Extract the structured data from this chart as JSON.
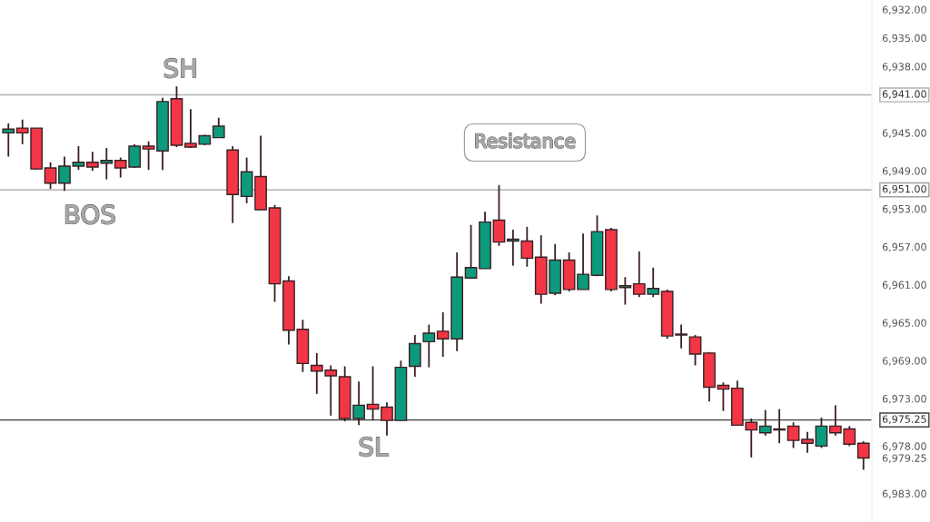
{
  "chart_data": {
    "type": "candlestick",
    "categories": [
      null,
      null,
      null,
      null,
      null,
      null,
      null,
      null,
      null,
      null,
      null,
      null,
      null,
      null,
      null,
      null,
      null,
      null,
      null,
      null,
      null,
      null,
      null,
      null,
      null,
      null,
      null,
      null,
      null,
      null,
      null,
      null,
      null,
      null,
      null,
      null,
      null,
      null,
      null,
      null,
      null,
      null,
      null,
      null,
      null,
      null,
      null,
      null,
      null,
      null,
      null,
      null,
      null,
      null,
      null,
      null,
      null,
      null,
      null,
      null,
      null,
      null
    ],
    "ohlc": [
      [
        6945.0,
        6947.5,
        6944.0,
        6944.6
      ],
      [
        6944.5,
        6946.2,
        6943.6,
        6945.0
      ],
      [
        6944.5,
        6948.9,
        6944.5,
        6948.8
      ],
      [
        6948.7,
        6950.9,
        6948.1,
        6950.3
      ],
      [
        6950.3,
        6951.1,
        6947.5,
        6948.5
      ],
      [
        6948.5,
        6948.9,
        6946.4,
        6948.1
      ],
      [
        6948.1,
        6949.0,
        6947.0,
        6948.6
      ],
      [
        6948.2,
        6949.9,
        6946.6,
        6947.9
      ],
      [
        6947.9,
        6949.7,
        6947.6,
        6948.7
      ],
      [
        6948.6,
        6948.7,
        6946.2,
        6946.4
      ],
      [
        6946.4,
        6948.9,
        6945.9,
        6946.7
      ],
      [
        6946.9,
        6948.9,
        6941.3,
        6941.7
      ],
      [
        6941.4,
        6946.5,
        6940.1,
        6946.3
      ],
      [
        6946.1,
        6946.6,
        6942.5,
        6946.5
      ],
      [
        6946.2,
        6946.3,
        6945.2,
        6945.3
      ],
      [
        6945.5,
        6945.5,
        6943.4,
        6944.3
      ],
      [
        6946.8,
        6954.5,
        6946.4,
        6951.5
      ],
      [
        6951.7,
        6952.4,
        6947.6,
        6949.1
      ],
      [
        6949.6,
        6953.1,
        6945.3,
        6953.1
      ],
      [
        6952.9,
        6962.8,
        6952.6,
        6960.9
      ],
      [
        6960.6,
        6967.3,
        6960.1,
        6965.8
      ],
      [
        6965.7,
        6970.2,
        6964.7,
        6969.3
      ],
      [
        6969.5,
        6972.5,
        6968.2,
        6970.1
      ],
      [
        6970.0,
        6974.8,
        6969.5,
        6970.6
      ],
      [
        6970.7,
        6975.4,
        6969.6,
        6975.1
      ],
      [
        6975.1,
        6975.8,
        6971.2,
        6973.7
      ],
      [
        6973.6,
        6975.3,
        6969.6,
        6974.1
      ],
      [
        6973.9,
        6976.9,
        6973.4,
        6975.3
      ],
      [
        6975.3,
        6975.3,
        6969.0,
        6969.7
      ],
      [
        6969.6,
        6970.7,
        6966.3,
        6967.2
      ],
      [
        6967.0,
        6969.7,
        6965.2,
        6966.1
      ],
      [
        6965.9,
        6968.6,
        6963.9,
        6966.7
      ],
      [
        6966.7,
        6968.0,
        6957.6,
        6960.2
      ],
      [
        6960.3,
        6960.3,
        6954.7,
        6959.2
      ],
      [
        6959.3,
        6959.3,
        6953.3,
        6954.4
      ],
      [
        6954.2,
        6956.9,
        6950.5,
        6956.5
      ],
      [
        6956.4,
        6959.0,
        6955.2,
        6956.2
      ],
      [
        6956.4,
        6959.1,
        6954.9,
        6958.2
      ],
      [
        6958.1,
        6963.0,
        6955.8,
        6962.0
      ],
      [
        6961.9,
        6962.1,
        6956.7,
        6958.4
      ],
      [
        6958.4,
        6961.7,
        6957.6,
        6961.5
      ],
      [
        6961.5,
        6961.5,
        6955.6,
        6959.9
      ],
      [
        6960.0,
        6960.1,
        6953.7,
        6955.4
      ],
      [
        6955.2,
        6961.7,
        6955.0,
        6961.5
      ],
      [
        6961.3,
        6963.1,
        6960.2,
        6961.1
      ],
      [
        6960.9,
        6962.3,
        6957.5,
        6962.0
      ],
      [
        6962.0,
        6962.3,
        6959.2,
        6961.4
      ],
      [
        6961.7,
        6966.7,
        6961.5,
        6966.4
      ],
      [
        6966.2,
        6967.7,
        6965.2,
        6966.3
      ],
      [
        6966.5,
        6969.5,
        6966.3,
        6968.3
      ],
      [
        6968.2,
        6973.3,
        6968.1,
        6971.8
      ],
      [
        6971.6,
        6974.3,
        6971.3,
        6972.0
      ],
      [
        6971.9,
        6975.8,
        6971.1,
        6975.8
      ],
      [
        6975.5,
        6979.2,
        6975.1,
        6976.3
      ],
      [
        6976.6,
        6976.9,
        6974.2,
        6975.9
      ],
      [
        6976.2,
        6977.7,
        6974.1,
        6976.3
      ],
      [
        6975.9,
        6978.2,
        6975.5,
        6977.4
      ],
      [
        6977.3,
        6978.7,
        6976.5,
        6977.7
      ],
      [
        6978.0,
        6978.2,
        6975.0,
        6975.9
      ],
      [
        6975.9,
        6976.9,
        6973.7,
        6976.6
      ],
      [
        6976.2,
        6978.0,
        6975.9,
        6977.8
      ],
      [
        6977.7,
        6980.5,
        6977.5,
        6979.25
      ]
    ],
    "colors": [
      "#0c9a7d",
      "#f23645",
      "#f23645",
      "#f23645",
      "#0c9a7d",
      "#0c9a7d",
      "#f23645",
      "#0c9a7d",
      "#f23645",
      "#0c9a7d",
      "#f23645",
      "#0c9a7d",
      "#f23645",
      "#f23645",
      "#0c9a7d",
      "#0c9a7d",
      "#f23645",
      "#0c9a7d",
      "#f23645",
      "#f23645",
      "#f23645",
      "#f23645",
      "#f23645",
      "#f23645",
      "#f23645",
      "#0c9a7d",
      "#f23645",
      "#f23645",
      "#0c9a7d",
      "#0c9a7d",
      "#0c9a7d",
      "#f23645",
      "#0c9a7d",
      "#0c9a7d",
      "#0c9a7d",
      "#f23645",
      "#0c9a7d",
      "#f23645",
      "#f23645",
      "#0c9a7d",
      "#f23645",
      "#0c9a7d",
      "#0c9a7d",
      "#f23645",
      "#0c9a7d",
      "#f23645",
      "#0c9a7d",
      "#f23645",
      "#f23645",
      "#f23645",
      "#f23645",
      "#f23645",
      "#f23645",
      "#f23645",
      "#0c9a7d",
      "#f23645",
      "#f23645",
      "#f23645",
      "#0c9a7d",
      "#f23645",
      "#f23645",
      "#f23645"
    ],
    "ylim": [
      6986,
      6931
    ],
    "yticks": [
      {
        "value": 6932,
        "label": "6,932.00"
      },
      {
        "value": 6935,
        "label": "6,935.00"
      },
      {
        "value": 6938,
        "label": "6,938.00"
      },
      {
        "value": 6945,
        "label": "6,945.00"
      },
      {
        "value": 6949,
        "label": "6,949.00"
      },
      {
        "value": 6953,
        "label": "6,953.00"
      },
      {
        "value": 6957,
        "label": "6,957.00"
      },
      {
        "value": 6961,
        "label": "6,961.00"
      },
      {
        "value": 6965,
        "label": "6,965.00"
      },
      {
        "value": 6969,
        "label": "6,969.00"
      },
      {
        "value": 6973,
        "label": "6,973.00"
      },
      {
        "value": 6978,
        "label": "6,978.00"
      },
      {
        "value": 6979.25,
        "label": "6,979.25"
      },
      {
        "value": 6983,
        "label": "6,983.00"
      }
    ],
    "tick_labels": "y",
    "ref_lines": [
      {
        "axis": "y",
        "value": 6941,
        "label": "6,941.00",
        "color": "#b0b0b0",
        "line_style": "solid"
      },
      {
        "axis": "y",
        "value": 6951,
        "label": "6,951.00",
        "color": "#a0a0a0",
        "line_style": "solid"
      },
      {
        "axis": "y",
        "value": 6975.25,
        "label": "6,975.25",
        "color": "#404040",
        "line_style": "solid"
      }
    ],
    "annotations": [
      "SH",
      "BOS",
      "SL",
      "Resistance"
    ],
    "grid": false
  }
}
